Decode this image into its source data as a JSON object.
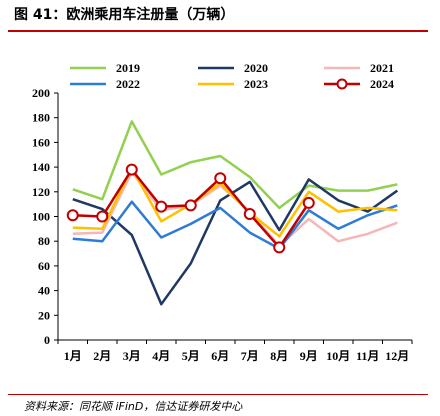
{
  "header": {
    "title": "图 41：欧洲乘用车注册量（万辆）"
  },
  "footer": {
    "source": "资料来源：同花顺 iFinD，信达证券研发中心"
  },
  "colors": {
    "accent_rule": "#c00000"
  },
  "chart_data": {
    "type": "line",
    "categories": [
      "1月",
      "2月",
      "3月",
      "4月",
      "5月",
      "6月",
      "7月",
      "8月",
      "9月",
      "10月",
      "11月",
      "12月"
    ],
    "ylim": [
      0,
      200
    ],
    "yticks": [
      0,
      20,
      40,
      60,
      80,
      100,
      120,
      140,
      160,
      180,
      200
    ],
    "grid": false,
    "legend_position": "top",
    "series": [
      {
        "name": "2019",
        "color": "#92d050",
        "marker": false,
        "values": [
          122,
          114,
          177,
          134,
          144,
          149,
          132,
          107,
          125,
          121,
          121,
          126
        ]
      },
      {
        "name": "2020",
        "color": "#1f3864",
        "marker": false,
        "values": [
          114,
          106,
          85,
          29,
          62,
          113,
          128,
          89,
          130,
          113,
          104,
          121
        ]
      },
      {
        "name": "2021",
        "color": "#f4b6b6",
        "marker": false,
        "values": [
          86,
          87,
          136,
          105,
          109,
          125,
          104,
          76,
          98,
          80,
          86,
          95
        ]
      },
      {
        "name": "2022",
        "color": "#2e7bd6",
        "marker": false,
        "values": [
          82,
          80,
          112,
          83,
          94,
          107,
          87,
          74,
          105,
          90,
          101,
          109
        ]
      },
      {
        "name": "2023",
        "color": "#ffc000",
        "marker": false,
        "values": [
          91,
          90,
          139,
          96,
          110,
          127,
          103,
          84,
          120,
          104,
          107,
          105
        ]
      },
      {
        "name": "2024",
        "color": "#c00000",
        "marker": true,
        "values": [
          101,
          100,
          138,
          108,
          109,
          131,
          102,
          75,
          111,
          null,
          null,
          null
        ]
      }
    ]
  }
}
